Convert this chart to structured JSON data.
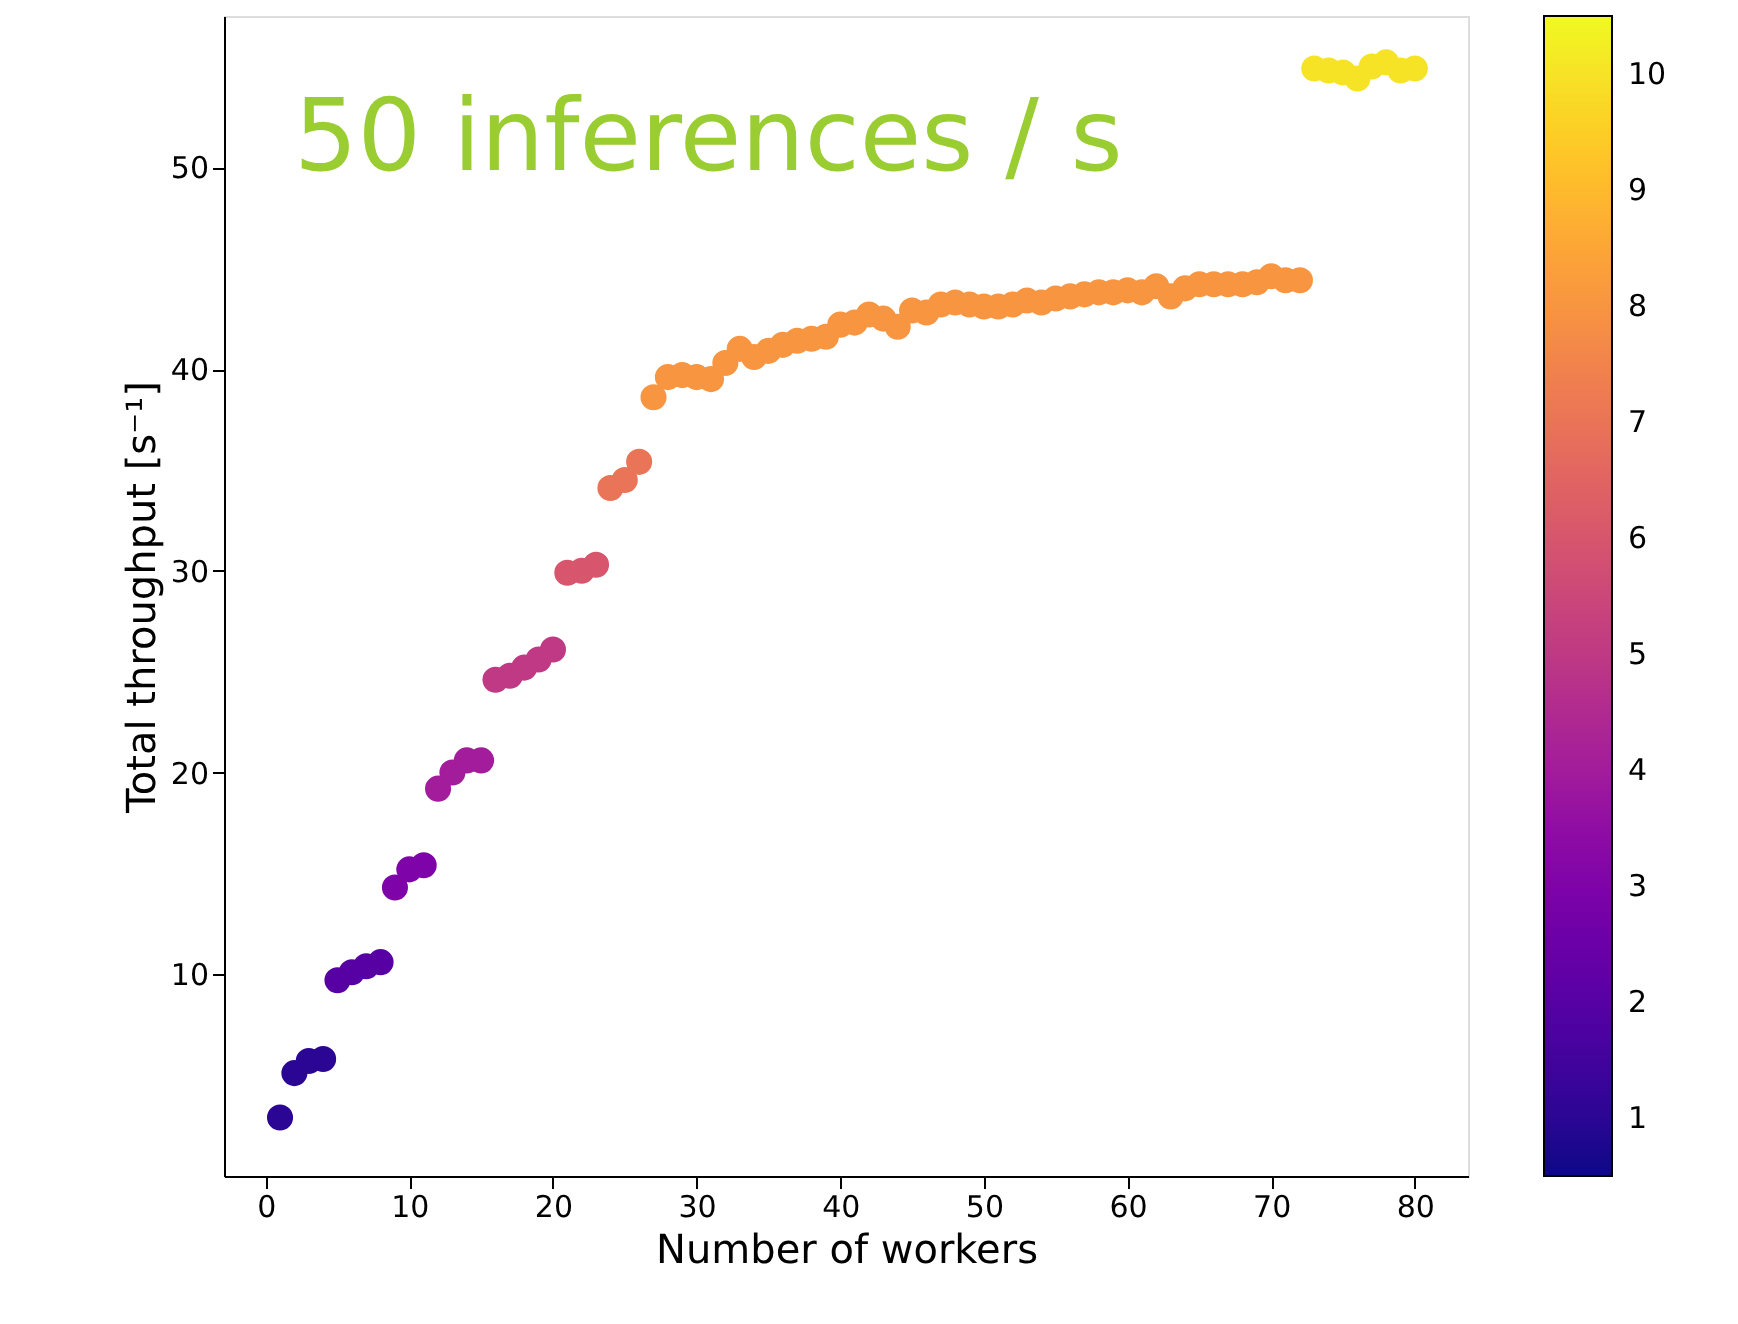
{
  "chart_data": {
    "type": "scatter",
    "xlabel": "Number of workers",
    "ylabel": "Total throughput [s⁻¹]",
    "annotations": [
      "50 inferences / s"
    ],
    "x": [
      1,
      2,
      3,
      4,
      5,
      6,
      7,
      8,
      9,
      10,
      11,
      12,
      13,
      14,
      15,
      16,
      17,
      18,
      19,
      20,
      21,
      22,
      23,
      24,
      25,
      26,
      27,
      28,
      29,
      30,
      31,
      32,
      33,
      34,
      35,
      36,
      37,
      38,
      39,
      40,
      41,
      42,
      43,
      44,
      45,
      46,
      47,
      48,
      49,
      50,
      51,
      52,
      53,
      54,
      55,
      56,
      57,
      58,
      59,
      60,
      61,
      62,
      63,
      64,
      65,
      66,
      67,
      68,
      69,
      70,
      71,
      72,
      73,
      74,
      75,
      76,
      77,
      78,
      79,
      80
    ],
    "values": [
      2.9,
      5.1,
      5.7,
      5.8,
      9.7,
      10.1,
      10.4,
      10.6,
      14.3,
      15.2,
      15.4,
      19.2,
      20.0,
      20.6,
      20.6,
      24.6,
      24.8,
      25.2,
      25.6,
      26.1,
      29.9,
      30.0,
      30.3,
      34.1,
      34.5,
      35.4,
      38.6,
      39.6,
      39.7,
      39.6,
      39.5,
      40.3,
      41.0,
      40.6,
      40.9,
      41.2,
      41.4,
      41.5,
      41.6,
      42.2,
      42.3,
      42.7,
      42.5,
      42.1,
      42.9,
      42.8,
      43.2,
      43.3,
      43.2,
      43.1,
      43.1,
      43.2,
      43.4,
      43.3,
      43.5,
      43.6,
      43.7,
      43.8,
      43.8,
      43.9,
      43.8,
      44.1,
      43.6,
      44.0,
      44.2,
      44.2,
      44.2,
      44.2,
      44.3,
      44.6,
      44.4,
      44.4,
      54.9,
      54.8,
      54.7,
      54.4,
      55.0,
      55.2,
      54.8,
      54.9
    ],
    "cvalues": [
      1,
      1,
      1,
      1,
      2,
      2,
      2,
      2,
      3,
      3,
      3,
      4,
      4,
      4,
      4,
      5,
      5,
      5,
      5,
      5,
      6,
      6,
      6,
      7,
      7,
      7,
      8,
      8,
      8,
      8,
      8,
      8,
      8,
      8,
      8,
      8,
      8,
      8,
      8,
      8,
      8,
      8,
      8,
      8,
      8,
      8,
      8,
      8,
      8,
      8,
      8,
      8,
      8,
      8,
      8,
      8,
      8,
      8,
      8,
      8,
      8,
      8,
      8,
      8,
      8,
      8,
      8,
      8,
      8,
      8,
      8,
      8,
      10,
      10,
      10,
      10,
      10,
      10,
      10,
      10
    ],
    "clim": [
      0.5,
      10.5
    ],
    "cticks": [
      1,
      2,
      3,
      4,
      5,
      6,
      7,
      8,
      9,
      10
    ],
    "xlim": [
      -2.9,
      83.7
    ],
    "ylim": [
      0,
      57.5
    ],
    "xticks": [
      0,
      10,
      20,
      30,
      40,
      50,
      60,
      70,
      80
    ],
    "yticks": [
      10,
      20,
      30,
      40,
      50
    ],
    "marker": "circle",
    "grid": false
  }
}
